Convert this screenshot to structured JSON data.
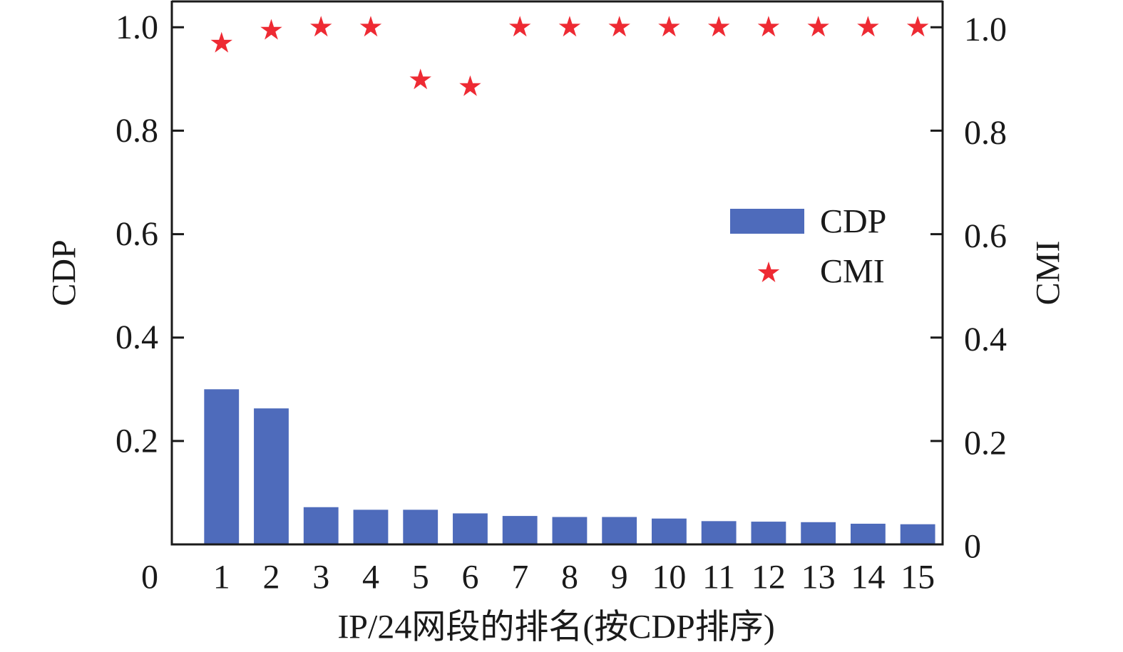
{
  "chart_data": {
    "type": "bar",
    "categories": [
      "1",
      "2",
      "3",
      "4",
      "5",
      "6",
      "7",
      "8",
      "9",
      "10",
      "11",
      "12",
      "13",
      "14",
      "15"
    ],
    "series": [
      {
        "name": "CDP",
        "type": "bar",
        "axis": "left",
        "color": "#4e6bbb",
        "values": [
          0.3,
          0.263,
          0.072,
          0.067,
          0.067,
          0.06,
          0.055,
          0.053,
          0.053,
          0.05,
          0.045,
          0.044,
          0.043,
          0.04,
          0.039
        ]
      },
      {
        "name": "CMI",
        "type": "scatter",
        "marker": "star",
        "axis": "right",
        "color": "#ee2a33",
        "values": [
          0.969,
          0.994,
          1.0,
          1.0,
          0.898,
          0.885,
          1.0,
          1.0,
          1.0,
          1.0,
          1.0,
          1.0,
          1.0,
          1.0,
          1.0
        ]
      }
    ],
    "xlabel": "IP/24网段的排名(按CDP排序)",
    "ylabel": "CDP",
    "y2label": "CMI",
    "xlim": [
      0,
      15.5
    ],
    "ylim": [
      0,
      1.05
    ],
    "y2lim": [
      0,
      1.05
    ],
    "yticks": [
      {
        "value": 0,
        "label": "0"
      },
      {
        "value": 0.2,
        "label": "0.2"
      },
      {
        "value": 0.4,
        "label": "0.4"
      },
      {
        "value": 0.6,
        "label": "0.6"
      },
      {
        "value": 0.8,
        "label": "0.8"
      },
      {
        "value": 1.0,
        "label": "1.0"
      }
    ],
    "y2ticks": [
      {
        "value": 0,
        "label": "0"
      },
      {
        "value": 0.2,
        "label": "0.2"
      },
      {
        "value": 0.4,
        "label": "0.4"
      },
      {
        "value": 0.6,
        "label": "0.6"
      },
      {
        "value": 0.8,
        "label": "0.8"
      },
      {
        "value": 1.0,
        "label": "1.0"
      }
    ],
    "grid": false,
    "legend": {
      "position": "center-right"
    }
  }
}
